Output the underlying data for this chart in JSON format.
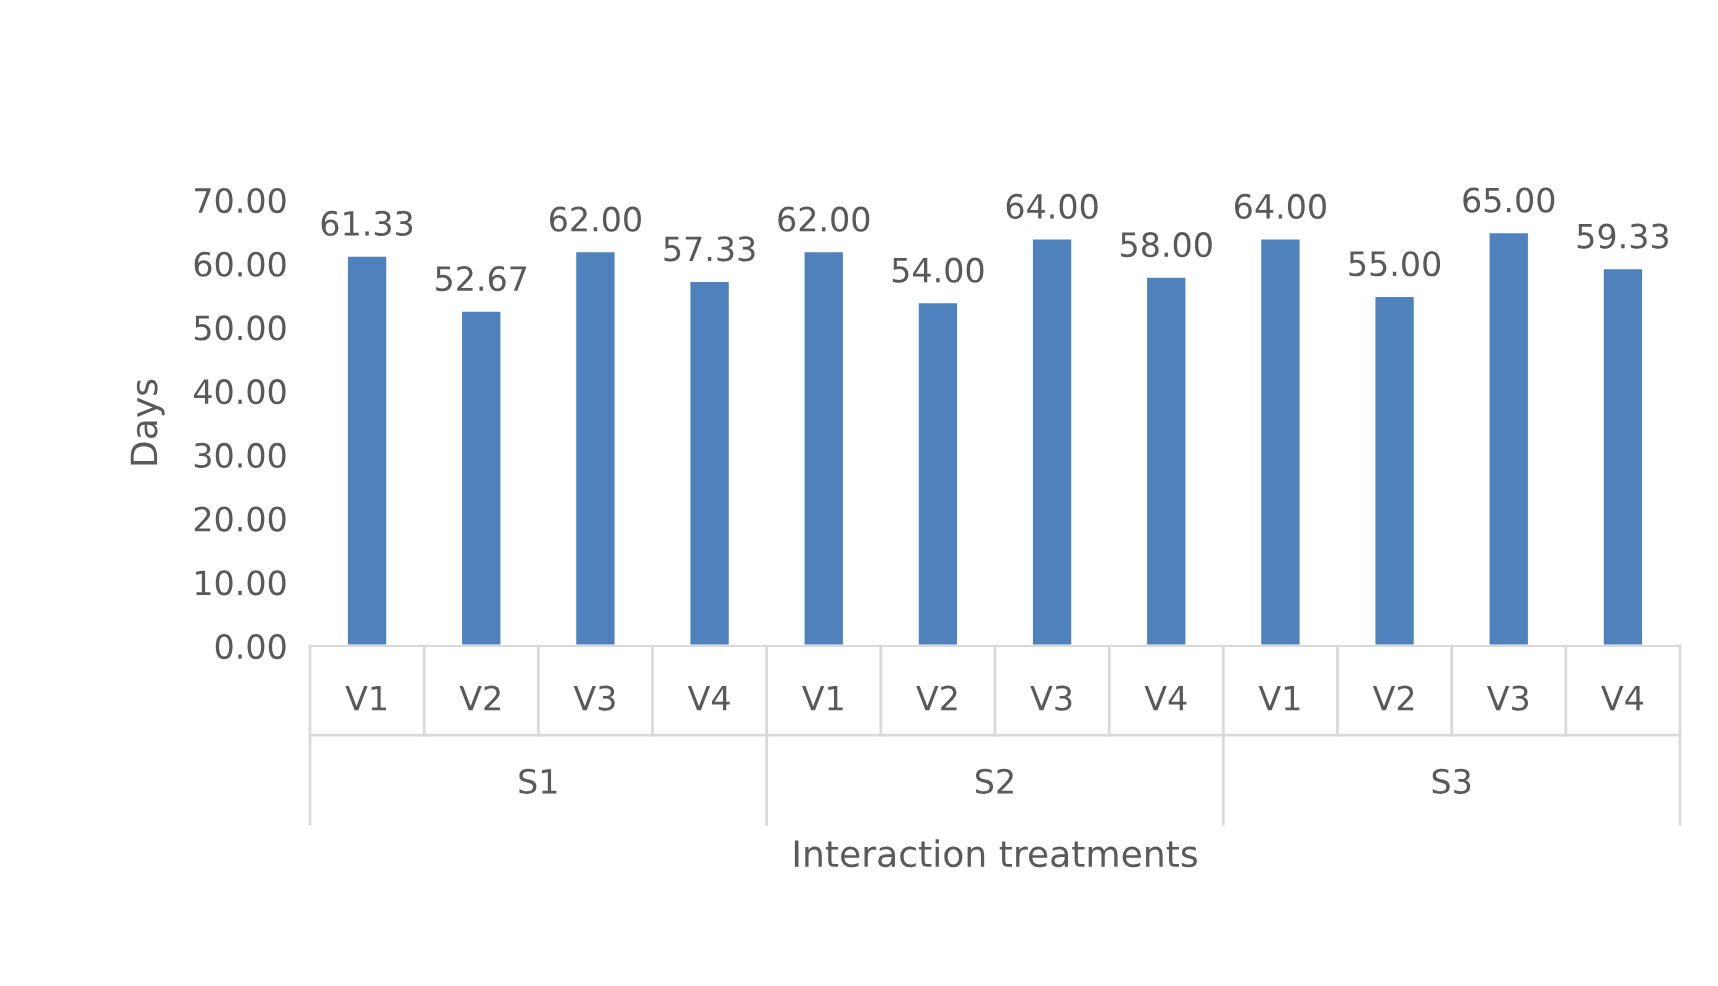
{
  "chart_data": {
    "type": "bar",
    "xlabel": "Interaction treatments",
    "ylabel": "Days",
    "categories": [
      "V1",
      "V2",
      "V3",
      "V4",
      "V1",
      "V2",
      "V3",
      "V4",
      "V1",
      "V2",
      "V3",
      "V4"
    ],
    "values": [
      61.33,
      52.67,
      62.0,
      57.33,
      62.0,
      54.0,
      64.0,
      58.0,
      64.0,
      55.0,
      65.0,
      59.33
    ],
    "value_labels": [
      "61.33",
      "52.67",
      "62.00",
      "57.33",
      "62.00",
      "54.00",
      "64.00",
      "58.00",
      "64.00",
      "55.00",
      "65.00",
      "59.33"
    ],
    "color": "#4f81bd",
    "annotations": [
      "S1",
      "S2",
      "S3"
    ],
    "ylim": [
      0,
      70
    ],
    "yticks": [
      {
        "value": 0,
        "label": "0.00"
      },
      {
        "value": 10,
        "label": "10.00"
      },
      {
        "value": 20,
        "label": "20.00"
      },
      {
        "value": 30,
        "label": "30.00"
      },
      {
        "value": 40,
        "label": "40.00"
      },
      {
        "value": 50,
        "label": "50.00"
      },
      {
        "value": 60,
        "label": "60.00"
      },
      {
        "value": 70,
        "label": "70.00"
      }
    ],
    "grid": false,
    "legend": false
  }
}
